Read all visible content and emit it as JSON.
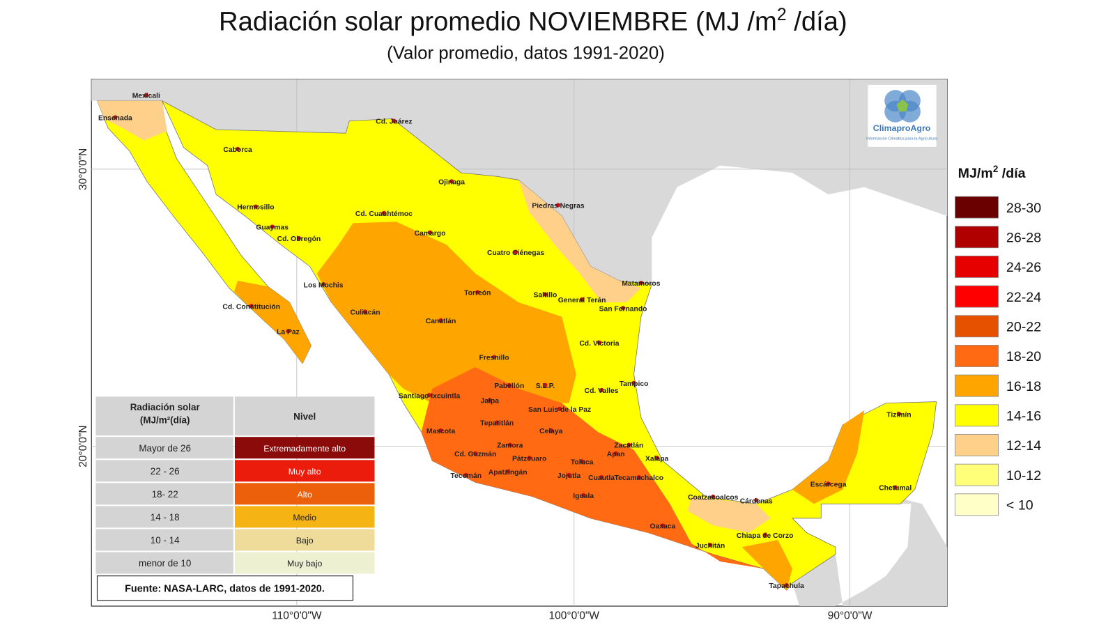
{
  "header": {
    "title": {
      "text": "Radiación solar promedio NOVIEMBRE (MJ /m",
      "superscript": "2",
      "suffix": " /día)"
    },
    "subtitle": "(Valor promedio, datos 1991-2020)"
  },
  "axes": {
    "longitudes": [
      "110°0'0\"W",
      "100°0'0\"W",
      "90°0'0\"W"
    ],
    "latitudes": [
      "30°0'0\"N",
      "20°0'0\"N"
    ]
  },
  "logo": {
    "name": "ClimaproAgro",
    "tagline": "Información Climática para la Agricultura"
  },
  "legend": {
    "title": {
      "text": "MJ/m",
      "superscript": "2",
      "suffix": " /día"
    },
    "items": [
      {
        "label": "28-30",
        "color": "#6b0000"
      },
      {
        "label": "26-28",
        "color": "#b00000"
      },
      {
        "label": "24-26",
        "color": "#e60000"
      },
      {
        "label": "22-24",
        "color": "#ff0000"
      },
      {
        "label": "20-22",
        "color": "#e65100"
      },
      {
        "label": "18-20",
        "color": "#ff6a13"
      },
      {
        "label": "16-18",
        "color": "#ffa500"
      },
      {
        "label": "14-16",
        "color": "#ffff00"
      },
      {
        "label": "12-14",
        "color": "#ffd08a"
      },
      {
        "label": "10-12",
        "color": "#ffff7a"
      },
      {
        "label": "< 10",
        "color": "#ffffc8"
      }
    ]
  },
  "table": {
    "header": [
      "Radiación solar",
      "(MJ/m²(día)",
      "Nivel"
    ],
    "rows": [
      {
        "range": "Mayor de 26",
        "level": "Extremadamente alto",
        "color": "#8b0a0a"
      },
      {
        "range": "22 - 26",
        "level": "Muy alto",
        "color": "#ec1c0c"
      },
      {
        "range": "18- 22",
        "level": "Alto",
        "color": "#ec600c"
      },
      {
        "range": "14 - 18",
        "level": "Medio",
        "color": "#f5b414"
      },
      {
        "range": "10 - 14",
        "level": "Bajo",
        "color": "#efdc9a"
      },
      {
        "range": "menor de 10",
        "level": "Muy bajo",
        "color": "#eef0d2"
      }
    ]
  },
  "source": "Fuente: NASA-LARC, datos de 1991-2020.",
  "cities": [
    "Mexicali",
    "Ensenada",
    "Cd. Juárez",
    "Caborca",
    "Ojinaga",
    "Piedras Negras",
    "Hermosillo",
    "Cd. Cuauhtémoc",
    "Guaymas",
    "Cd. Obregón",
    "Camargo",
    "Cuatro Ciénegas",
    "Los Mochis",
    "Matamoros",
    "Torreón",
    "Saltillo",
    "General Terán",
    "Cd. Constitución",
    "San Fernando",
    "Culiacán",
    "Canatlán",
    "La Paz",
    "Cd. Victoria",
    "Fresnillo",
    "Pabellón",
    "S.L.P.",
    "Tampico",
    "Cd. Valles",
    "Jalpa",
    "Santiago Ixcuintla",
    "San Luis de la Paz",
    "Tepatitlán",
    "Mascota",
    "Celaya",
    "Zamora",
    "Zacatlán",
    "Cd. Guzmán",
    "Pátzcuaro",
    "Toluca",
    "Apan",
    "Xalapa",
    "Apatzingán",
    "Tecomán",
    "Jojutla",
    "Cuautla",
    "Tecamachalco",
    "Iguala",
    "Coatzacoalcos",
    "Cárdenas",
    "Escárcega",
    "Tizimín",
    "Chetumal",
    "Oaxaca",
    "Chiapa de Corzo",
    "Juchitán",
    "Tapachula"
  ]
}
